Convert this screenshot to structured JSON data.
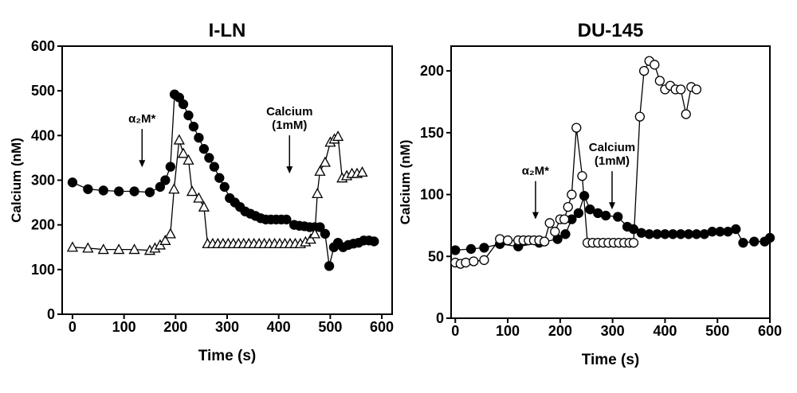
{
  "chart_data": [
    {
      "type": "line",
      "title": "I-LN",
      "xlabel": "Time (s)",
      "ylabel": "Calcium (nM)",
      "xlim": [
        -20,
        620
      ],
      "xticks": [
        0,
        100,
        200,
        300,
        400,
        500,
        600
      ],
      "ylim": [
        0,
        600
      ],
      "yticks": [
        0,
        100,
        200,
        300,
        400,
        500,
        600
      ],
      "series": [
        {
          "color": "#000000",
          "marker": "circle-filled",
          "x": [
            0,
            30,
            60,
            90,
            120,
            150,
            170,
            180,
            190,
            198,
            207,
            215,
            225,
            235,
            245,
            255,
            265,
            275,
            285,
            295,
            305,
            315,
            325,
            335,
            345,
            355,
            365,
            375,
            385,
            395,
            405,
            415,
            430,
            440,
            450,
            460,
            470,
            480,
            490,
            498,
            507,
            515,
            525,
            535,
            545,
            555,
            565,
            575,
            585
          ],
          "values": [
            295,
            280,
            277,
            275,
            275,
            273,
            285,
            300,
            330,
            492,
            485,
            470,
            445,
            420,
            395,
            370,
            350,
            330,
            305,
            285,
            260,
            250,
            240,
            230,
            225,
            220,
            215,
            212,
            212,
            212,
            212,
            212,
            200,
            198,
            197,
            195,
            195,
            195,
            180,
            108,
            150,
            160,
            150,
            155,
            158,
            160,
            165,
            165,
            163
          ]
        },
        {
          "color": "#000000",
          "marker": "triangle-open",
          "x": [
            0,
            30,
            60,
            90,
            120,
            150,
            160,
            170,
            180,
            190,
            197,
            207,
            215,
            225,
            232,
            245,
            255,
            262,
            272,
            282,
            292,
            302,
            312,
            322,
            332,
            342,
            352,
            362,
            372,
            382,
            392,
            402,
            412,
            422,
            432,
            442,
            452,
            462,
            470,
            475,
            480,
            490,
            500,
            508,
            515,
            523,
            532,
            542,
            552,
            562
          ],
          "values": [
            150,
            148,
            145,
            145,
            145,
            143,
            148,
            155,
            165,
            180,
            280,
            390,
            360,
            345,
            275,
            260,
            240,
            158,
            158,
            158,
            158,
            158,
            158,
            158,
            158,
            158,
            158,
            158,
            158,
            158,
            158,
            158,
            158,
            158,
            158,
            158,
            162,
            168,
            180,
            270,
            320,
            340,
            385,
            392,
            398,
            305,
            310,
            315,
            315,
            318
          ]
        }
      ],
      "annotations": [
        {
          "text": [
            "α₂M*"
          ],
          "x": 135,
          "y": 329
        },
        {
          "text": [
            "Calcium",
            "(1mM)"
          ],
          "x": 421,
          "y": 315
        }
      ]
    },
    {
      "type": "line",
      "title": "DU-145",
      "xlabel": "Time (s)",
      "ylabel": "Calcium (nM)",
      "xlim": [
        -8,
        600
      ],
      "xticks": [
        0,
        100,
        200,
        300,
        400,
        500,
        600
      ],
      "ylim": [
        0,
        220
      ],
      "yticks": [
        0,
        50,
        100,
        150,
        200
      ],
      "series": [
        {
          "color": "#000000",
          "marker": "circle-filled",
          "x": [
            0,
            30,
            55,
            85,
            120,
            160,
            195,
            210,
            222,
            235,
            246,
            257,
            272,
            287,
            310,
            328,
            340,
            355,
            370,
            385,
            400,
            415,
            430,
            445,
            460,
            475,
            490,
            505,
            520,
            535,
            549,
            570,
            590,
            600
          ],
          "values": [
            55,
            56,
            57,
            60,
            58,
            61,
            64,
            68,
            80,
            85,
            99,
            88,
            85,
            83,
            82,
            74,
            72,
            69,
            68,
            68,
            68,
            68,
            68,
            68,
            68,
            68,
            70,
            70,
            70,
            72,
            61,
            62,
            62,
            65
          ]
        },
        {
          "color": "#000000",
          "marker": "circle-open",
          "x": [
            0,
            10,
            20,
            35,
            55,
            85,
            100,
            120,
            130,
            140,
            150,
            160,
            170,
            180,
            190,
            200,
            208,
            215,
            222,
            231,
            242,
            252,
            262,
            272,
            282,
            292,
            302,
            312,
            322,
            332,
            340,
            352,
            360,
            370,
            380,
            390,
            400,
            410,
            420,
            430,
            440,
            450,
            460
          ],
          "values": [
            45,
            44,
            45,
            46,
            47,
            64,
            63,
            63,
            63,
            63,
            63,
            63,
            62,
            77,
            70,
            80,
            80,
            90,
            100,
            154,
            115,
            61,
            61,
            61,
            61,
            61,
            61,
            61,
            61,
            61,
            61,
            163,
            200,
            208,
            205,
            192,
            185,
            188,
            185,
            185,
            165,
            187,
            185
          ]
        }
      ],
      "annotations": [
        {
          "text": [
            "α₂M*"
          ],
          "x": 153,
          "y": 80
        },
        {
          "text": [
            "Calcium",
            "(1mM)"
          ],
          "x": 299,
          "y": 88
        }
      ]
    }
  ]
}
